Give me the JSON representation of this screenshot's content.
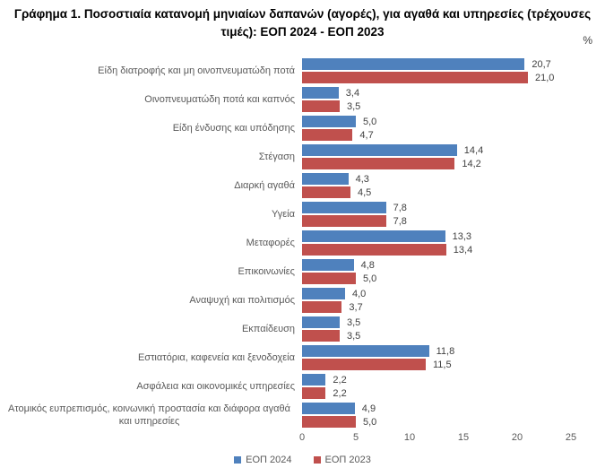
{
  "title": "Γράφημα 1. Ποσοστιαία κατανομή μηνιαίων δαπανών (αγορές), για αγαθά και υπηρεσίες (τρέχουσες τιμές): ΕΟΠ 2024 - ΕΟΠ 2023",
  "unit_label": "%",
  "chart_data": {
    "type": "bar",
    "orientation": "horizontal",
    "title": "Γράφημα 1. Ποσοστιαία κατανομή μηνιαίων δαπανών (αγορές), για αγαθά και υπηρεσίες (τρέχουσες τιμές): ΕΟΠ 2024 - ΕΟΠ 2023",
    "xlabel": "",
    "ylabel": "",
    "unit": "%",
    "xlim": [
      0,
      25
    ],
    "x_ticks": [
      0,
      5,
      10,
      15,
      20,
      25
    ],
    "grid": false,
    "legend_position": "bottom",
    "decimal_separator": ",",
    "categories": [
      "Είδη διατροφής και μη οινοπνευματώδη ποτά",
      "Οινοπνευματώδη ποτά και καπνός",
      "Είδη ένδυσης και υπόδησης",
      "Στέγαση",
      "Διαρκή αγαθά",
      "Υγεία",
      "Μεταφορές",
      "Επικοινωνίες",
      "Αναψυχή και πολιτισμός",
      "Εκπαίδευση",
      "Εστιατόρια, καφενεία και ξενοδοχεία",
      "Ασφάλεια και οικονομικές υπηρεσίες",
      "Ατομικός ευπρεπισμός, κοινωνική προστασία και διάφορα αγαθά και υπηρεσίες"
    ],
    "series": [
      {
        "name": "ΕΟΠ 2024",
        "color": "#4F81BD",
        "values": [
          20.7,
          3.4,
          5.0,
          14.4,
          4.3,
          7.8,
          13.3,
          4.8,
          4.0,
          3.5,
          11.8,
          2.2,
          4.9
        ]
      },
      {
        "name": "ΕΟΠ 2023",
        "color": "#C0504D",
        "values": [
          21.0,
          3.5,
          4.7,
          14.2,
          4.5,
          7.8,
          13.4,
          5.0,
          3.7,
          3.5,
          11.5,
          2.2,
          5.0
        ]
      }
    ]
  }
}
